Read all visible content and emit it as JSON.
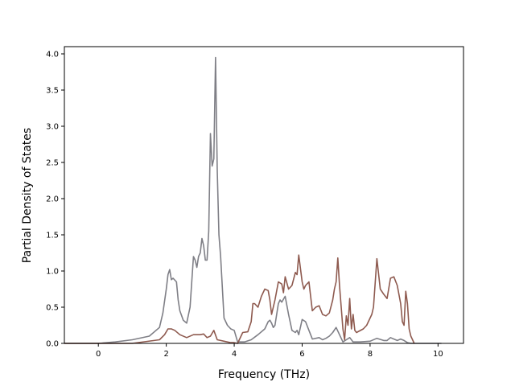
{
  "chart_data": {
    "type": "line",
    "title": "",
    "xlabel": "Frequency (THz)",
    "ylabel": "Partial Density of States",
    "xlim": [
      -1.0,
      10.75
    ],
    "ylim": [
      0,
      4.1
    ],
    "grid": false,
    "legend": "none",
    "x_ticks": [
      0,
      2,
      4,
      6,
      8,
      10
    ],
    "x_tick_labels": [
      "0",
      "2",
      "4",
      "6",
      "8",
      "10"
    ],
    "y_ticks": [
      0.0,
      0.5,
      1.0,
      1.5,
      2.0,
      2.5,
      3.0,
      3.5,
      4.0
    ],
    "y_tick_labels": [
      "0.0",
      "0.5",
      "1.0",
      "1.5",
      "2.0",
      "2.5",
      "3.0",
      "3.5",
      "4.0"
    ],
    "series": [
      {
        "color": "#7f7f86",
        "x": [
          -1.0,
          0.0,
          0.5,
          1.0,
          1.5,
          1.8,
          1.9,
          2.0,
          2.05,
          2.1,
          2.15,
          2.2,
          2.3,
          2.35,
          2.4,
          2.5,
          2.55,
          2.6,
          2.7,
          2.8,
          2.85,
          2.9,
          2.95,
          3.0,
          3.05,
          3.1,
          3.15,
          3.2,
          3.25,
          3.3,
          3.35,
          3.4,
          3.45,
          3.5,
          3.55,
          3.6,
          3.7,
          3.8,
          3.9,
          4.0,
          4.1,
          4.3,
          4.5,
          4.7,
          4.9,
          5.0,
          5.05,
          5.1,
          5.15,
          5.2,
          5.3,
          5.35,
          5.4,
          5.5,
          5.6,
          5.7,
          5.8,
          5.85,
          5.9,
          6.0,
          6.1,
          6.2,
          6.3,
          6.5,
          6.6,
          6.7,
          6.8,
          6.9,
          7.0,
          7.1,
          7.2,
          7.3,
          7.4,
          7.5,
          7.7,
          8.0,
          8.2,
          8.4,
          8.5,
          8.6,
          8.7,
          8.8,
          8.9,
          9.0,
          9.1,
          9.2,
          10.1
        ],
        "y": [
          0.0,
          0.0,
          0.02,
          0.05,
          0.1,
          0.22,
          0.42,
          0.75,
          0.95,
          1.02,
          0.88,
          0.9,
          0.85,
          0.6,
          0.45,
          0.32,
          0.3,
          0.28,
          0.5,
          1.2,
          1.15,
          1.05,
          1.2,
          1.25,
          1.45,
          1.35,
          1.15,
          1.15,
          1.55,
          2.9,
          2.45,
          2.55,
          3.95,
          2.4,
          1.5,
          1.2,
          0.35,
          0.25,
          0.2,
          0.18,
          0.02,
          0.02,
          0.05,
          0.12,
          0.2,
          0.3,
          0.32,
          0.28,
          0.22,
          0.25,
          0.55,
          0.6,
          0.57,
          0.65,
          0.4,
          0.18,
          0.15,
          0.18,
          0.12,
          0.33,
          0.3,
          0.18,
          0.06,
          0.08,
          0.05,
          0.07,
          0.1,
          0.15,
          0.22,
          0.12,
          0.02,
          0.05,
          0.08,
          0.02,
          0.02,
          0.03,
          0.07,
          0.04,
          0.04,
          0.08,
          0.06,
          0.04,
          0.06,
          0.04,
          0.01,
          0.0,
          0.0
        ]
      },
      {
        "color": "#8e5a4f",
        "x": [
          -1.0,
          1.0,
          1.8,
          1.95,
          2.05,
          2.15,
          2.25,
          2.4,
          2.6,
          2.8,
          3.0,
          3.1,
          3.2,
          3.3,
          3.4,
          3.5,
          3.6,
          3.7,
          3.9,
          4.0,
          4.1,
          4.25,
          4.4,
          4.5,
          4.55,
          4.6,
          4.7,
          4.8,
          4.9,
          5.0,
          5.05,
          5.1,
          5.2,
          5.3,
          5.4,
          5.45,
          5.5,
          5.6,
          5.7,
          5.8,
          5.85,
          5.9,
          6.0,
          6.05,
          6.1,
          6.2,
          6.3,
          6.4,
          6.5,
          6.6,
          6.7,
          6.8,
          6.9,
          6.95,
          7.0,
          7.05,
          7.1,
          7.15,
          7.2,
          7.25,
          7.3,
          7.35,
          7.4,
          7.45,
          7.5,
          7.55,
          7.6,
          7.8,
          7.9,
          8.0,
          8.05,
          8.1,
          8.2,
          8.3,
          8.4,
          8.5,
          8.6,
          8.7,
          8.8,
          8.9,
          8.95,
          9.0,
          9.05,
          9.1,
          9.15,
          9.2,
          9.3
        ],
        "y": [
          0.0,
          0.0,
          0.05,
          0.12,
          0.2,
          0.2,
          0.18,
          0.12,
          0.08,
          0.12,
          0.12,
          0.13,
          0.08,
          0.1,
          0.18,
          0.05,
          0.04,
          0.03,
          0.01,
          0.01,
          0.0,
          0.15,
          0.16,
          0.3,
          0.55,
          0.55,
          0.5,
          0.65,
          0.75,
          0.73,
          0.6,
          0.4,
          0.6,
          0.85,
          0.82,
          0.7,
          0.92,
          0.75,
          0.8,
          0.98,
          0.95,
          1.22,
          0.85,
          0.75,
          0.8,
          0.85,
          0.45,
          0.5,
          0.52,
          0.4,
          0.38,
          0.42,
          0.6,
          0.75,
          0.85,
          1.18,
          0.8,
          0.5,
          0.2,
          0.05,
          0.38,
          0.25,
          0.62,
          0.2,
          0.4,
          0.18,
          0.15,
          0.2,
          0.25,
          0.35,
          0.4,
          0.5,
          1.17,
          0.75,
          0.68,
          0.62,
          0.9,
          0.92,
          0.8,
          0.55,
          0.3,
          0.25,
          0.72,
          0.55,
          0.2,
          0.1,
          0.0
        ]
      }
    ]
  }
}
